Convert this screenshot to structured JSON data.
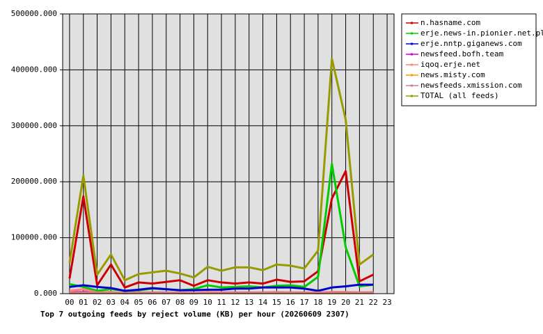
{
  "chart_data": {
    "type": "line",
    "title": "Top 7 outgoing feeds by reject volume (KB) per hour (20260609 2307)",
    "categories": [
      "00",
      "01",
      "02",
      "03",
      "04",
      "05",
      "06",
      "07",
      "08",
      "09",
      "10",
      "11",
      "12",
      "13",
      "14",
      "15",
      "16",
      "17",
      "18",
      "19",
      "20",
      "21",
      "22",
      "23"
    ],
    "ylim": [
      0,
      500000
    ],
    "yticks": [
      {
        "value": 0,
        "label": "0.000"
      },
      {
        "value": 100000,
        "label": "100000.000"
      },
      {
        "value": 200000,
        "label": "200000.000"
      },
      {
        "value": 300000,
        "label": "300000.000"
      },
      {
        "value": 400000,
        "label": "400000.000"
      },
      {
        "value": 500000,
        "label": "500000.000"
      }
    ],
    "grid": true,
    "legend": "right",
    "series": [
      {
        "name": "n.hasname.com",
        "color": "#cc0000",
        "values": [
          27000,
          174000,
          15000,
          52000,
          11000,
          20000,
          18000,
          21000,
          24000,
          14000,
          24000,
          20000,
          18000,
          20000,
          18000,
          25000,
          21000,
          22000,
          40000,
          170000,
          219000,
          22000,
          34000,
          null
        ]
      },
      {
        "name": "erje.news-in.pionier.net.pl",
        "color": "#00cc00",
        "values": [
          17000,
          12000,
          5000,
          8000,
          5000,
          6000,
          9000,
          8000,
          6000,
          8000,
          15000,
          11000,
          12000,
          13000,
          11000,
          14000,
          15000,
          12000,
          30000,
          232000,
          83000,
          13000,
          16000,
          null
        ]
      },
      {
        "name": "erje.nntp.giganews.com",
        "color": "#0000cc",
        "values": [
          12000,
          15000,
          12000,
          10000,
          5000,
          7000,
          10000,
          8000,
          6000,
          6000,
          7000,
          7000,
          9000,
          9000,
          11000,
          11000,
          11000,
          9000,
          5000,
          11000,
          13000,
          16000,
          16000,
          null
        ]
      },
      {
        "name": "newsfeed.bofh.team",
        "color": "#cc00cc",
        "values": [
          2000,
          3000,
          2000,
          2000,
          1000,
          2000,
          2000,
          2000,
          1000,
          1000,
          2000,
          2000,
          2000,
          2000,
          2000,
          2000,
          2000,
          2000,
          1000,
          2000,
          2000,
          2000,
          2000,
          null
        ]
      },
      {
        "name": "iqoq.erje.net",
        "color": "#ff8080",
        "values": [
          5000,
          8000,
          2000,
          3000,
          1000,
          2000,
          2000,
          2000,
          2000,
          1000,
          3000,
          2000,
          2000,
          2000,
          2000,
          3000,
          2000,
          2000,
          2000,
          3000,
          3000,
          2000,
          3000,
          null
        ]
      },
      {
        "name": "news.misty.com",
        "color": "#ff9900",
        "values": [
          1000,
          1000,
          1000,
          1000,
          1000,
          1000,
          1000,
          1000,
          1000,
          1000,
          1000,
          1000,
          1000,
          1000,
          1000,
          1000,
          1000,
          1000,
          1000,
          1000,
          1000,
          1000,
          1000,
          null
        ]
      },
      {
        "name": "newsfeeds.xmission.com",
        "color": "#cc8080",
        "values": [
          1500,
          2000,
          1500,
          1500,
          1000,
          1500,
          1500,
          1500,
          1500,
          1000,
          1500,
          1500,
          1500,
          1500,
          1500,
          1500,
          1500,
          1500,
          1000,
          1500,
          1500,
          1500,
          1500,
          null
        ]
      },
      {
        "name": "TOTAL (all feeds)",
        "color": "#999900",
        "values": [
          55000,
          211000,
          34000,
          70000,
          24000,
          35000,
          38000,
          41000,
          36000,
          29000,
          48000,
          41000,
          47000,
          47000,
          42000,
          52000,
          50000,
          45000,
          77000,
          420000,
          311000,
          52000,
          70000,
          null
        ]
      }
    ]
  }
}
